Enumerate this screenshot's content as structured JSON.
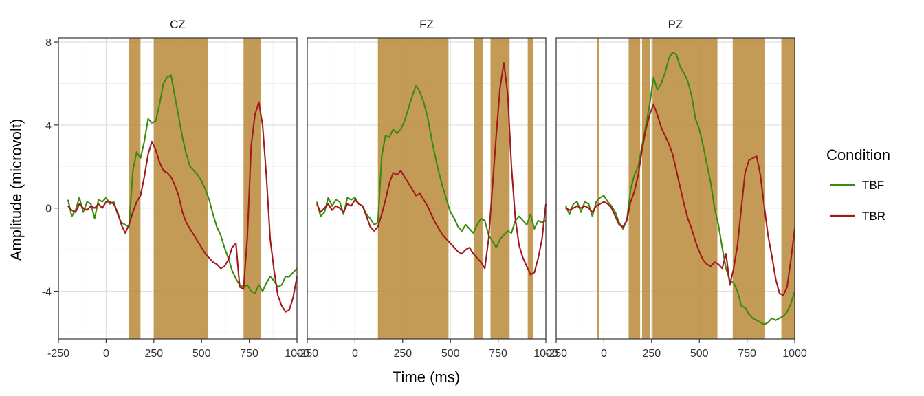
{
  "chart_data": {
    "type": "line",
    "xlabel": "Time (ms)",
    "ylabel": "Amplitude (microvolt)",
    "xlim": [
      -250,
      1000
    ],
    "ylim": [
      -6.3,
      8.2
    ],
    "x_ticks": [
      -250,
      0,
      250,
      500,
      750,
      1000
    ],
    "x_tick_labels": [
      "-250",
      "0",
      "250",
      "500",
      "750",
      "1000"
    ],
    "y_ticks": [
      -4,
      0,
      4,
      8
    ],
    "y_tick_labels": [
      "-4",
      "0",
      "4",
      "8"
    ],
    "grid": true,
    "legend": {
      "title": "Condition",
      "position": "right",
      "items": [
        {
          "label": "TBF",
          "color": "#3a8a0c"
        },
        {
          "label": "TBR",
          "color": "#a3171d"
        }
      ]
    },
    "colors": {
      "TBF": "#3a8a0c",
      "TBR": "#a3171d",
      "significance_band": "#b8893a"
    },
    "panels": [
      {
        "title": "CZ",
        "bands": [
          [
            120,
            180
          ],
          [
            250,
            535
          ],
          [
            720,
            810
          ]
        ],
        "series": [
          {
            "name": "TBF",
            "x": [
              -200,
              -180,
              -160,
              -140,
              -120,
              -100,
              -80,
              -60,
              -40,
              -20,
              0,
              20,
              40,
              60,
              80,
              100,
              120,
              140,
              160,
              180,
              200,
              220,
              240,
              260,
              280,
              300,
              320,
              340,
              360,
              380,
              400,
              420,
              440,
              460,
              480,
              500,
              520,
              540,
              560,
              580,
              600,
              620,
              640,
              660,
              680,
              700,
              720,
              740,
              760,
              780,
              800,
              820,
              840,
              860,
              880,
              900,
              920,
              940,
              960,
              980,
              1000
            ],
            "y": [
              0.4,
              -0.4,
              -0.1,
              0.5,
              -0.2,
              0.3,
              0.2,
              -0.5,
              0.4,
              0.3,
              0.5,
              0.2,
              0.3,
              -0.3,
              -0.7,
              -0.8,
              -0.9,
              1.8,
              2.7,
              2.4,
              3.2,
              4.3,
              4.1,
              4.2,
              5.0,
              6.0,
              6.3,
              6.4,
              5.4,
              4.4,
              3.4,
              2.6,
              2.0,
              1.8,
              1.6,
              1.3,
              0.9,
              0.4,
              -0.3,
              -0.9,
              -1.3,
              -1.9,
              -2.4,
              -3.0,
              -3.4,
              -3.7,
              -3.8,
              -3.7,
              -4.0,
              -4.1,
              -3.7,
              -4.0,
              -3.6,
              -3.3,
              -3.5,
              -3.8,
              -3.7,
              -3.3,
              -3.3,
              -3.1,
              -2.9
            ]
          },
          {
            "name": "TBR",
            "x": [
              -200,
              -180,
              -160,
              -140,
              -120,
              -100,
              -80,
              -60,
              -40,
              -20,
              0,
              20,
              40,
              60,
              80,
              100,
              120,
              140,
              160,
              180,
              200,
              220,
              240,
              260,
              280,
              300,
              320,
              340,
              360,
              380,
              400,
              420,
              440,
              460,
              480,
              500,
              520,
              540,
              560,
              580,
              600,
              620,
              640,
              660,
              680,
              700,
              720,
              740,
              760,
              780,
              800,
              820,
              840,
              860,
              880,
              900,
              920,
              940,
              960,
              980,
              1000
            ],
            "y": [
              0.1,
              -0.1,
              -0.2,
              0.2,
              0.0,
              -0.1,
              0.1,
              0.0,
              0.2,
              0.0,
              0.3,
              0.3,
              0.2,
              -0.2,
              -0.8,
              -1.2,
              -0.8,
              -0.2,
              0.3,
              0.6,
              1.5,
              2.6,
              3.2,
              2.8,
              2.2,
              1.8,
              1.7,
              1.5,
              1.1,
              0.6,
              -0.2,
              -0.7,
              -1.0,
              -1.3,
              -1.6,
              -1.9,
              -2.2,
              -2.4,
              -2.6,
              -2.7,
              -2.9,
              -2.8,
              -2.5,
              -1.9,
              -1.7,
              -3.8,
              -3.9,
              -1.4,
              3.0,
              4.5,
              5.1,
              4.0,
              1.5,
              -1.5,
              -3.0,
              -4.2,
              -4.7,
              -5.0,
              -4.9,
              -4.3,
              -3.3
            ]
          }
        ]
      },
      {
        "title": "FZ",
        "bands": [
          [
            120,
            490
          ],
          [
            625,
            670
          ],
          [
            710,
            810
          ],
          [
            905,
            935
          ]
        ],
        "series": [
          {
            "name": "TBF",
            "x": [
              -200,
              -180,
              -160,
              -140,
              -120,
              -100,
              -80,
              -60,
              -40,
              -20,
              0,
              20,
              40,
              60,
              80,
              100,
              120,
              140,
              160,
              180,
              200,
              220,
              240,
              260,
              280,
              300,
              320,
              340,
              360,
              380,
              400,
              420,
              440,
              460,
              480,
              500,
              520,
              540,
              560,
              580,
              600,
              620,
              640,
              660,
              680,
              700,
              720,
              740,
              760,
              780,
              800,
              820,
              840,
              860,
              880,
              900,
              920,
              940,
              960,
              980,
              1000
            ],
            "y": [
              0.3,
              -0.4,
              -0.2,
              0.5,
              0.1,
              0.4,
              0.3,
              -0.3,
              0.5,
              0.4,
              0.5,
              0.2,
              0.1,
              -0.3,
              -0.5,
              -0.8,
              -0.7,
              2.5,
              3.5,
              3.4,
              3.8,
              3.6,
              3.8,
              4.2,
              4.8,
              5.4,
              5.9,
              5.6,
              5.1,
              4.4,
              3.4,
              2.5,
              1.7,
              1.0,
              0.4,
              -0.2,
              -0.5,
              -0.9,
              -1.1,
              -0.8,
              -1.0,
              -1.2,
              -0.8,
              -0.5,
              -0.6,
              -1.3,
              -1.6,
              -1.9,
              -1.5,
              -1.3,
              -1.1,
              -1.2,
              -0.6,
              -0.4,
              -0.6,
              -0.8,
              -0.3,
              -1.0,
              -0.6,
              -0.7,
              -0.6
            ]
          },
          {
            "name": "TBR",
            "x": [
              -200,
              -180,
              -160,
              -140,
              -120,
              -100,
              -80,
              -60,
              -40,
              -20,
              0,
              20,
              40,
              60,
              80,
              100,
              120,
              140,
              160,
              180,
              200,
              220,
              240,
              260,
              280,
              300,
              320,
              340,
              360,
              380,
              400,
              420,
              440,
              460,
              480,
              500,
              520,
              540,
              560,
              580,
              600,
              620,
              640,
              660,
              680,
              700,
              720,
              740,
              760,
              780,
              800,
              820,
              840,
              860,
              880,
              900,
              920,
              940,
              960,
              980,
              1000
            ],
            "y": [
              0.2,
              -0.2,
              0.0,
              0.2,
              -0.1,
              0.1,
              0.0,
              -0.2,
              0.2,
              0.1,
              0.4,
              0.2,
              0.1,
              -0.4,
              -0.9,
              -1.1,
              -0.9,
              -0.3,
              0.4,
              1.2,
              1.7,
              1.6,
              1.8,
              1.5,
              1.2,
              0.9,
              0.6,
              0.7,
              0.4,
              0.1,
              -0.3,
              -0.7,
              -1.0,
              -1.3,
              -1.5,
              -1.7,
              -1.9,
              -2.1,
              -2.2,
              -2.0,
              -1.9,
              -2.2,
              -2.4,
              -2.6,
              -2.9,
              -1.5,
              1.0,
              3.5,
              5.8,
              7.0,
              5.5,
              2.0,
              -0.5,
              -1.8,
              -2.4,
              -2.8,
              -3.2,
              -3.1,
              -2.4,
              -1.5,
              0.2
            ]
          }
        ]
      },
      {
        "title": "PZ",
        "bands": [
          [
            -35,
            -25
          ],
          [
            130,
            190
          ],
          [
            200,
            240
          ],
          [
            255,
            595
          ],
          [
            675,
            845
          ],
          [
            930,
            1000
          ]
        ],
        "series": [
          {
            "name": "TBF",
            "x": [
              -200,
              -180,
              -160,
              -140,
              -120,
              -100,
              -80,
              -60,
              -40,
              -20,
              0,
              20,
              40,
              60,
              80,
              100,
              120,
              140,
              160,
              180,
              200,
              220,
              240,
              260,
              280,
              300,
              320,
              340,
              360,
              380,
              400,
              420,
              440,
              460,
              480,
              500,
              520,
              540,
              560,
              580,
              600,
              620,
              640,
              660,
              680,
              700,
              720,
              740,
              760,
              780,
              800,
              820,
              840,
              860,
              880,
              900,
              920,
              940,
              960,
              980,
              1000
            ],
            "y": [
              0.1,
              -0.3,
              0.2,
              0.3,
              -0.2,
              0.3,
              0.2,
              -0.4,
              0.3,
              0.5,
              0.6,
              0.3,
              0.1,
              -0.2,
              -0.7,
              -1.0,
              -0.6,
              0.9,
              1.6,
              2.0,
              3.0,
              4.0,
              5.0,
              6.3,
              5.7,
              6.0,
              6.5,
              7.2,
              7.5,
              7.4,
              6.8,
              6.5,
              6.1,
              5.4,
              4.3,
              3.8,
              3.0,
              2.1,
              1.2,
              0.0,
              -0.8,
              -1.9,
              -2.9,
              -3.5,
              -3.6,
              -4.0,
              -4.7,
              -4.8,
              -5.1,
              -5.3,
              -5.4,
              -5.5,
              -5.6,
              -5.5,
              -5.3,
              -5.4,
              -5.3,
              -5.2,
              -5.0,
              -4.6,
              -4.0
            ]
          },
          {
            "name": "TBR",
            "x": [
              -200,
              -180,
              -160,
              -140,
              -120,
              -100,
              -80,
              -60,
              -40,
              -20,
              0,
              20,
              40,
              60,
              80,
              100,
              120,
              140,
              160,
              180,
              200,
              220,
              240,
              260,
              280,
              300,
              320,
              340,
              360,
              380,
              400,
              420,
              440,
              460,
              480,
              500,
              520,
              540,
              560,
              580,
              600,
              620,
              640,
              660,
              680,
              700,
              720,
              740,
              760,
              780,
              800,
              820,
              840,
              860,
              880,
              900,
              920,
              940,
              960,
              980,
              1000
            ],
            "y": [
              0.0,
              -0.1,
              0.0,
              0.1,
              0.0,
              0.1,
              0.0,
              -0.2,
              0.1,
              0.2,
              0.3,
              0.2,
              0.0,
              -0.4,
              -0.8,
              -0.9,
              -0.6,
              0.3,
              0.8,
              1.6,
              2.8,
              3.8,
              4.5,
              5.0,
              4.5,
              3.9,
              3.5,
              3.1,
              2.6,
              1.8,
              1.0,
              0.2,
              -0.5,
              -1.0,
              -1.6,
              -2.1,
              -2.5,
              -2.7,
              -2.8,
              -2.6,
              -2.7,
              -2.9,
              -2.2,
              -3.7,
              -2.9,
              -1.8,
              0.0,
              1.7,
              2.3,
              2.4,
              2.5,
              1.6,
              0.1,
              -1.3,
              -2.3,
              -3.4,
              -4.1,
              -4.2,
              -3.8,
              -2.5,
              -1.0
            ]
          }
        ]
      }
    ]
  }
}
